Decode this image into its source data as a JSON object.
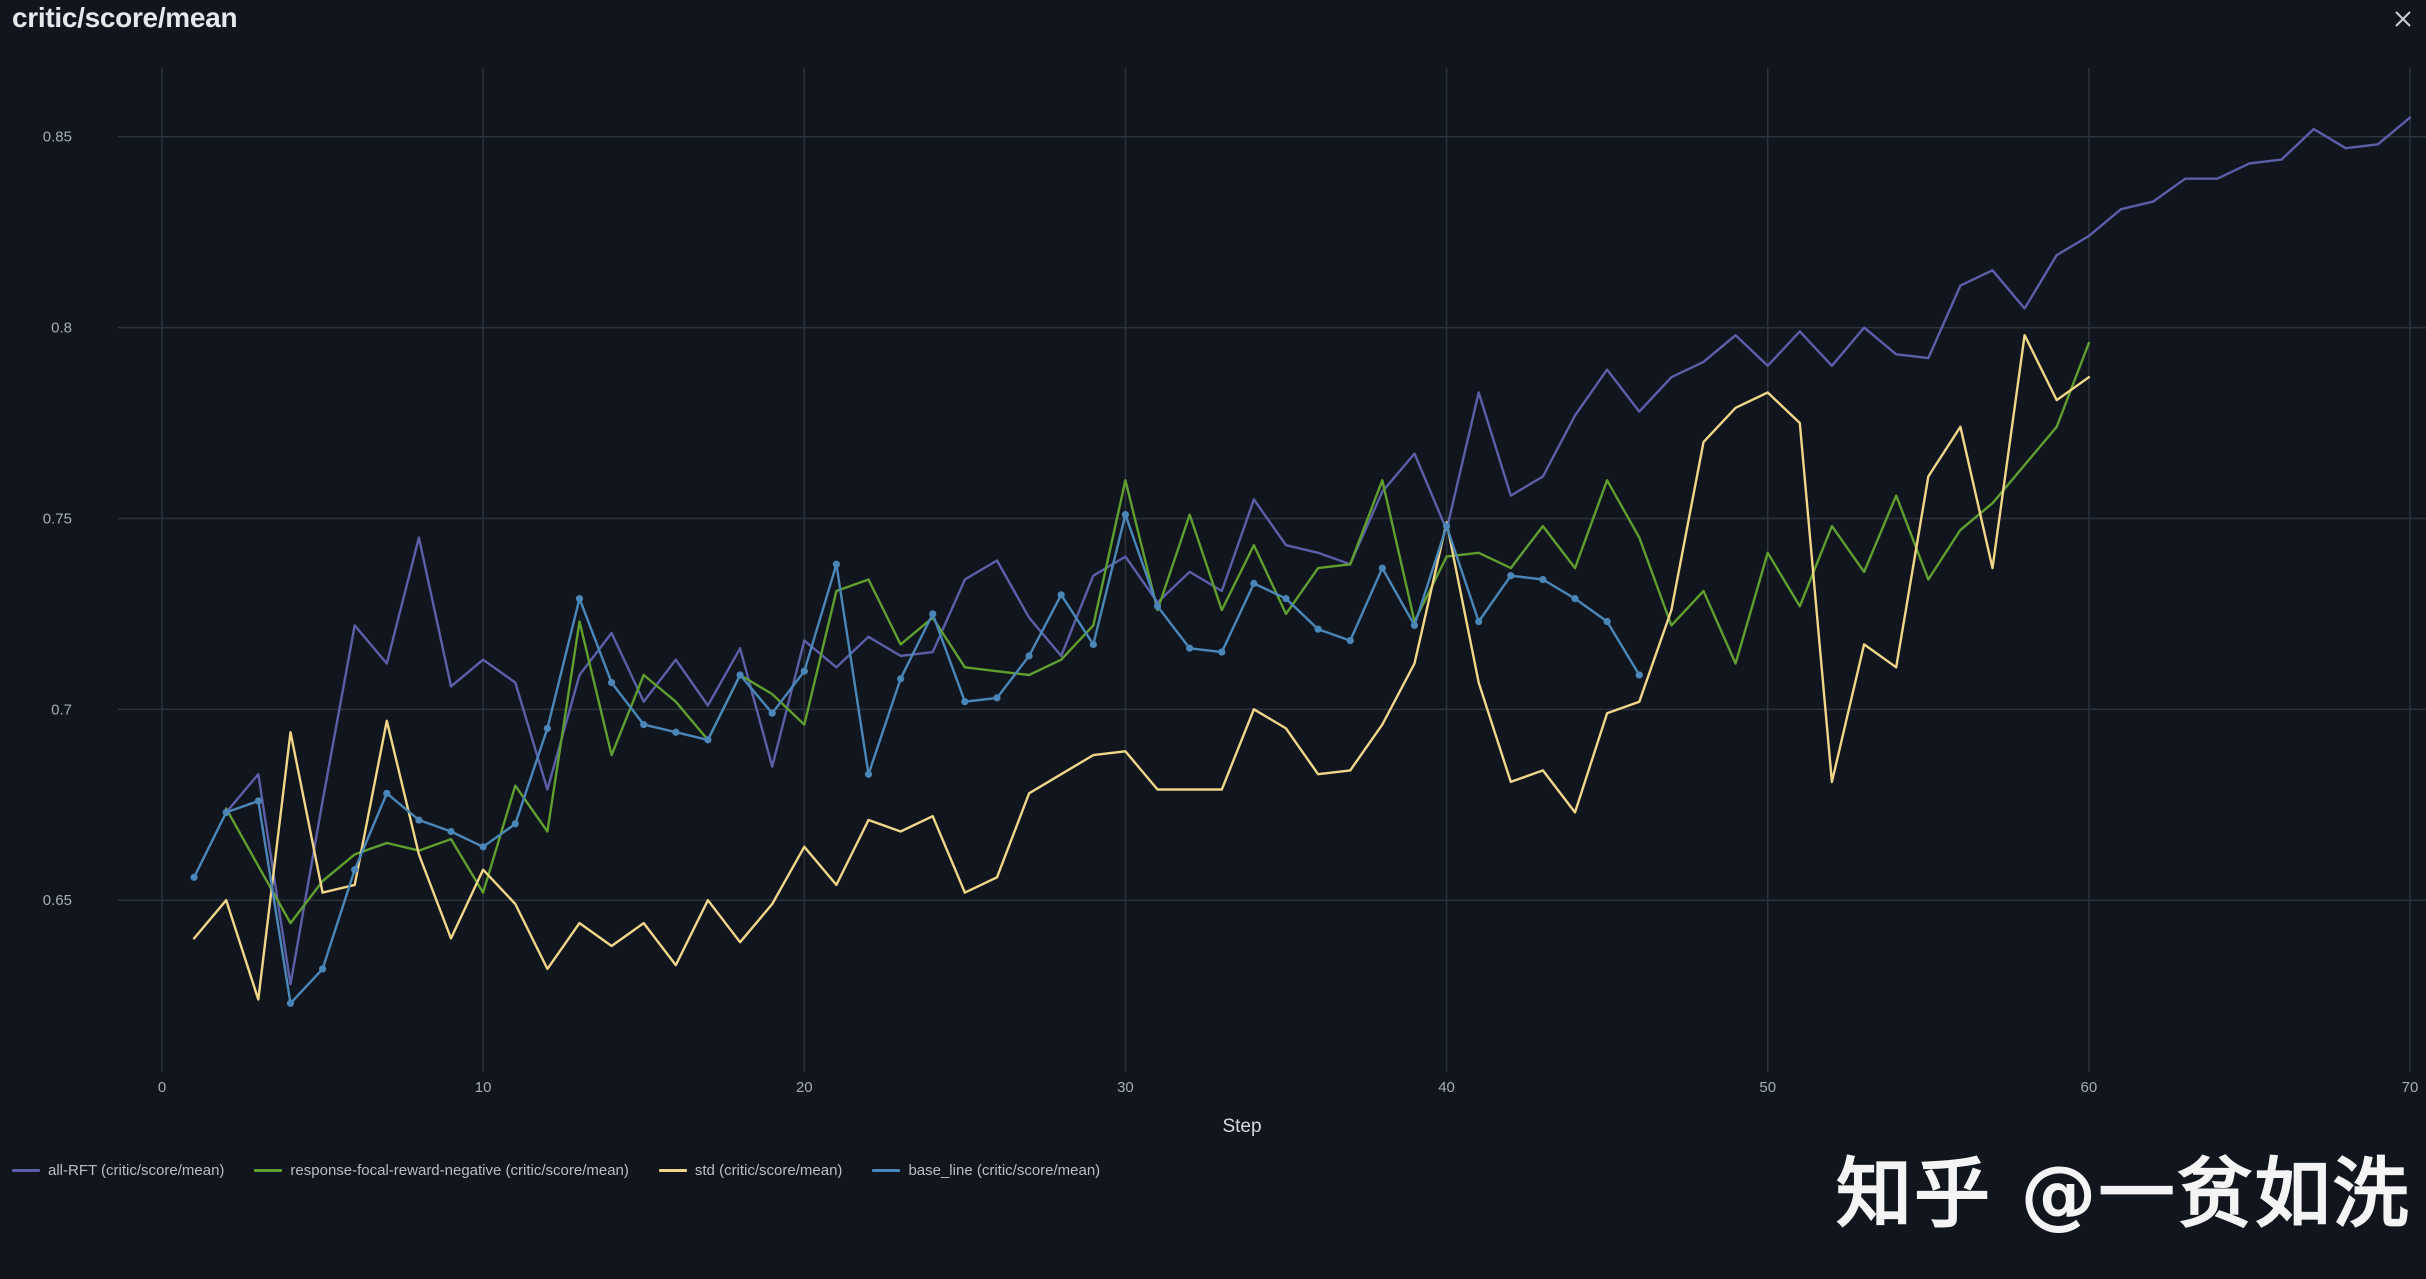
{
  "panel": {
    "title": "critic/score/mean",
    "close_icon": "close-icon"
  },
  "watermark": "知乎 @一贫如洗",
  "chart_data": {
    "type": "line",
    "title": "critic/score/mean",
    "xlabel": "Step",
    "ylabel": "",
    "xlim": [
      0,
      70
    ],
    "ylim": [
      0.605,
      0.868
    ],
    "x_ticks": [
      0,
      10,
      20,
      30,
      40,
      50,
      60,
      70
    ],
    "y_ticks": [
      0.65,
      0.7,
      0.75,
      0.8,
      0.85
    ],
    "grid": true,
    "legend_position": "bottom-left",
    "series": [
      {
        "name": "all-RFT (critic/score/mean)",
        "color": "#5b5fa8",
        "markers": false,
        "x": [
          2,
          3,
          4,
          5,
          6,
          7,
          8,
          9,
          10,
          11,
          12,
          13,
          14,
          15,
          16,
          17,
          18,
          19,
          20,
          21,
          22,
          23,
          24,
          25,
          26,
          27,
          28,
          29,
          30,
          31,
          32,
          33,
          34,
          35,
          36,
          37,
          38,
          39,
          40,
          41,
          42,
          43,
          44,
          45,
          46,
          47,
          48,
          49,
          50,
          51,
          52,
          53,
          54,
          55,
          56,
          57,
          58,
          59,
          60,
          61,
          62,
          63,
          64,
          65,
          66,
          67,
          68,
          69,
          70
        ],
        "values": [
          0.673,
          0.683,
          0.628,
          0.676,
          0.722,
          0.712,
          0.745,
          0.706,
          0.713,
          0.707,
          0.679,
          0.709,
          0.72,
          0.702,
          0.713,
          0.701,
          0.716,
          0.685,
          0.718,
          0.711,
          0.719,
          0.714,
          0.715,
          0.734,
          0.739,
          0.724,
          0.714,
          0.735,
          0.74,
          0.728,
          0.736,
          0.731,
          0.755,
          0.743,
          0.741,
          0.738,
          0.757,
          0.767,
          0.747,
          0.783,
          0.756,
          0.761,
          0.777,
          0.789,
          0.778,
          0.787,
          0.791,
          0.798,
          0.79,
          0.799,
          0.79,
          0.8,
          0.793,
          0.792,
          0.811,
          0.815,
          0.805,
          0.819,
          0.824,
          0.831,
          0.833,
          0.839,
          0.839,
          0.843,
          0.844,
          0.852,
          0.847,
          0.848,
          0.855
        ]
      },
      {
        "name": "response-focal-reward-negative (critic/score/mean)",
        "color": "#5f9e2f",
        "markers": false,
        "x": [
          2,
          3,
          4,
          5,
          6,
          7,
          8,
          9,
          10,
          11,
          12,
          13,
          14,
          15,
          16,
          17,
          18,
          19,
          20,
          21,
          22,
          23,
          24,
          25,
          26,
          27,
          28,
          29,
          30,
          31,
          32,
          33,
          34,
          35,
          36,
          37,
          38,
          39,
          40,
          41,
          42,
          43,
          44,
          45,
          46,
          47,
          48,
          49,
          50,
          51,
          52,
          53,
          54,
          55,
          56,
          57,
          58,
          59,
          60
        ],
        "values": [
          0.674,
          0.659,
          0.644,
          0.655,
          0.662,
          0.665,
          0.663,
          0.666,
          0.652,
          0.68,
          0.668,
          0.723,
          0.688,
          0.709,
          0.702,
          0.692,
          0.709,
          0.704,
          0.696,
          0.731,
          0.734,
          0.717,
          0.724,
          0.711,
          0.71,
          0.709,
          0.713,
          0.722,
          0.76,
          0.726,
          0.751,
          0.726,
          0.743,
          0.725,
          0.737,
          0.738,
          0.76,
          0.723,
          0.74,
          0.741,
          0.737,
          0.748,
          0.737,
          0.76,
          0.745,
          0.722,
          0.731,
          0.712,
          0.741,
          0.727,
          0.748,
          0.736,
          0.756,
          0.734,
          0.747,
          0.754,
          0.764,
          0.774,
          0.796
        ]
      },
      {
        "name": "std (critic/score/mean)",
        "color": "#f1d689",
        "markers": false,
        "x": [
          1,
          2,
          3,
          4,
          5,
          6,
          7,
          8,
          9,
          10,
          11,
          12,
          13,
          14,
          15,
          16,
          17,
          18,
          19,
          20,
          21,
          22,
          23,
          24,
          25,
          26,
          27,
          28,
          29,
          30,
          31,
          32,
          33,
          34,
          35,
          36,
          37,
          38,
          39,
          40,
          41,
          42,
          43,
          44,
          45,
          46,
          47,
          48,
          49,
          50,
          51,
          52,
          53,
          54,
          55,
          56,
          57,
          58,
          59,
          60
        ],
        "values": [
          0.64,
          0.65,
          0.624,
          0.694,
          0.652,
          0.654,
          0.697,
          0.662,
          0.64,
          0.658,
          0.649,
          0.632,
          0.644,
          0.638,
          0.644,
          0.633,
          0.65,
          0.639,
          0.649,
          0.664,
          0.654,
          0.671,
          0.668,
          0.672,
          0.652,
          0.656,
          0.678,
          0.683,
          0.688,
          0.689,
          0.679,
          0.679,
          0.679,
          0.7,
          0.695,
          0.683,
          0.684,
          0.696,
          0.712,
          0.749,
          0.707,
          0.681,
          0.684,
          0.673,
          0.699,
          0.702,
          0.726,
          0.77,
          0.779,
          0.783,
          0.775,
          0.681,
          0.717,
          0.711,
          0.761,
          0.774,
          0.737,
          0.798,
          0.781,
          0.787
        ]
      },
      {
        "name": "base_line (critic/score/mean)",
        "color": "#4a87b8",
        "markers": true,
        "x": [
          1,
          2,
          3,
          4,
          5,
          6,
          7,
          8,
          9,
          10,
          11,
          12,
          13,
          14,
          15,
          16,
          17,
          18,
          19,
          20,
          21,
          22,
          23,
          24,
          25,
          26,
          27,
          28,
          29,
          30,
          31,
          32,
          33,
          34,
          35,
          36,
          37,
          38,
          39,
          40,
          41,
          42,
          43,
          44,
          45,
          46
        ],
        "values": [
          0.656,
          0.673,
          0.676,
          0.623,
          0.632,
          0.658,
          0.678,
          0.671,
          0.668,
          0.664,
          0.67,
          0.695,
          0.729,
          0.707,
          0.696,
          0.694,
          0.692,
          0.709,
          0.699,
          0.71,
          0.738,
          0.683,
          0.708,
          0.725,
          0.702,
          0.703,
          0.714,
          0.73,
          0.717,
          0.751,
          0.727,
          0.716,
          0.715,
          0.733,
          0.729,
          0.721,
          0.718,
          0.737,
          0.722,
          0.748,
          0.723,
          0.735,
          0.734,
          0.729,
          0.723,
          0.709
        ]
      }
    ]
  }
}
